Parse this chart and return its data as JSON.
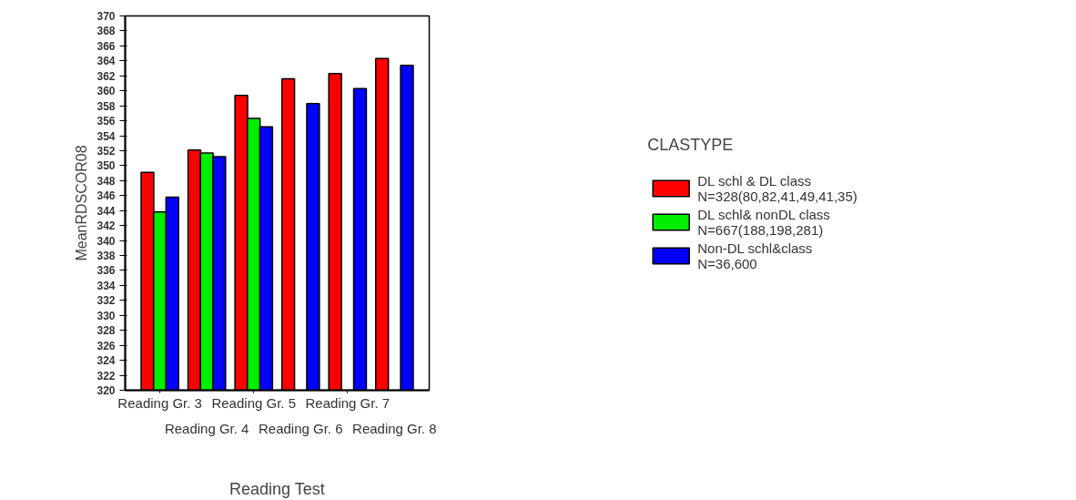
{
  "chart_data": {
    "type": "bar",
    "xlabel": "Reading Test",
    "ylabel": "MeanRDSCOR08",
    "legend_title": "CLASTYPE",
    "categories": [
      "Reading Gr. 3",
      "Reading Gr. 4",
      "Reading Gr. 5",
      "Reading Gr. 6",
      "Reading Gr. 7",
      "Reading Gr. 8"
    ],
    "series": [
      {
        "name": "DL schl & DL class\nN=328(80,82,41,49,41,35)",
        "color": "#ff0000",
        "values": [
          349.1,
          352.1,
          359.4,
          361.6,
          362.3,
          364.3
        ]
      },
      {
        "name": "DL schl& nonDL class\nN=667(188,198,281)",
        "color": "#00ee00",
        "values": [
          343.8,
          351.7,
          356.3,
          null,
          null,
          null
        ]
      },
      {
        "name": "Non-DL schl&class\nN=36,600",
        "color": "#0000ff",
        "values": [
          345.8,
          351.2,
          355.2,
          358.3,
          360.3,
          363.4
        ]
      }
    ],
    "ylim": [
      320,
      370
    ],
    "yticks": [
      320,
      322,
      324,
      326,
      328,
      330,
      332,
      334,
      336,
      338,
      340,
      342,
      344,
      346,
      348,
      350,
      352,
      354,
      356,
      358,
      360,
      362,
      364,
      366,
      368,
      370
    ],
    "grid": false,
    "legend": "right"
  }
}
